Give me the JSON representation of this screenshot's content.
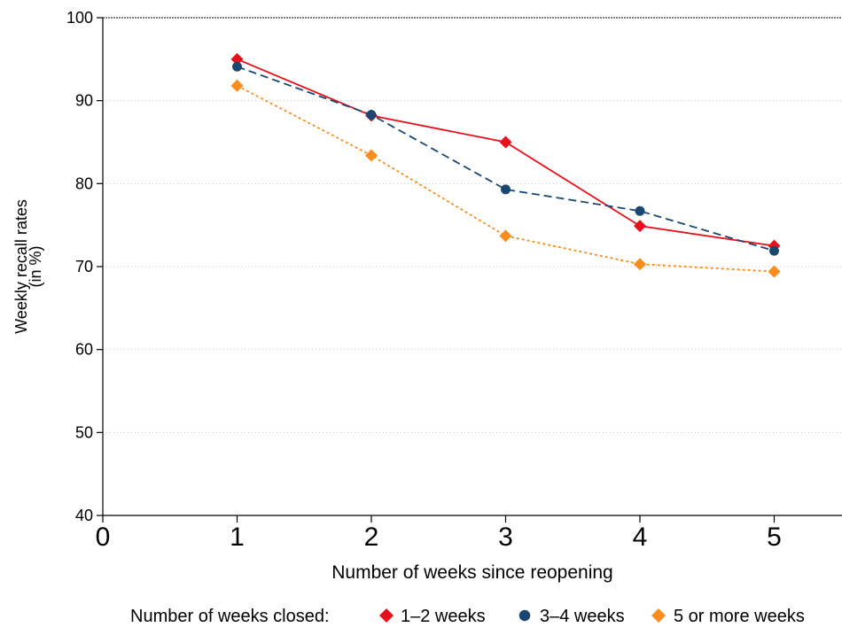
{
  "chart_data": {
    "type": "line",
    "xlabel": "Number of weeks since reopening",
    "ylabel": "Weekly recall rates",
    "ylabel_line2": "(in %)",
    "xlim": [
      0,
      5.5
    ],
    "ylim": [
      40,
      100
    ],
    "x_ticks": [
      0,
      1,
      2,
      3,
      4,
      5
    ],
    "y_ticks": [
      40,
      50,
      60,
      70,
      80,
      90,
      100
    ],
    "grid": true,
    "legend_position": "bottom",
    "legend_title": "Number of weeks closed:",
    "x": [
      1,
      2,
      3,
      4,
      5
    ],
    "series": [
      {
        "name": "1–2 weeks",
        "values": [
          95.0,
          88.2,
          85.0,
          74.9,
          72.5
        ],
        "color": "#e8101c",
        "marker": "diamond",
        "dash": "solid"
      },
      {
        "name": "3–4 weeks",
        "values": [
          94.1,
          88.3,
          79.3,
          76.7,
          71.9
        ],
        "color": "#1a476f",
        "marker": "circle",
        "dash": "dashed"
      },
      {
        "name": "5 or more weeks",
        "values": [
          91.8,
          83.4,
          73.7,
          70.3,
          69.4
        ],
        "color": "#f88c1c",
        "marker": "diamond",
        "dash": "dotted"
      }
    ]
  }
}
